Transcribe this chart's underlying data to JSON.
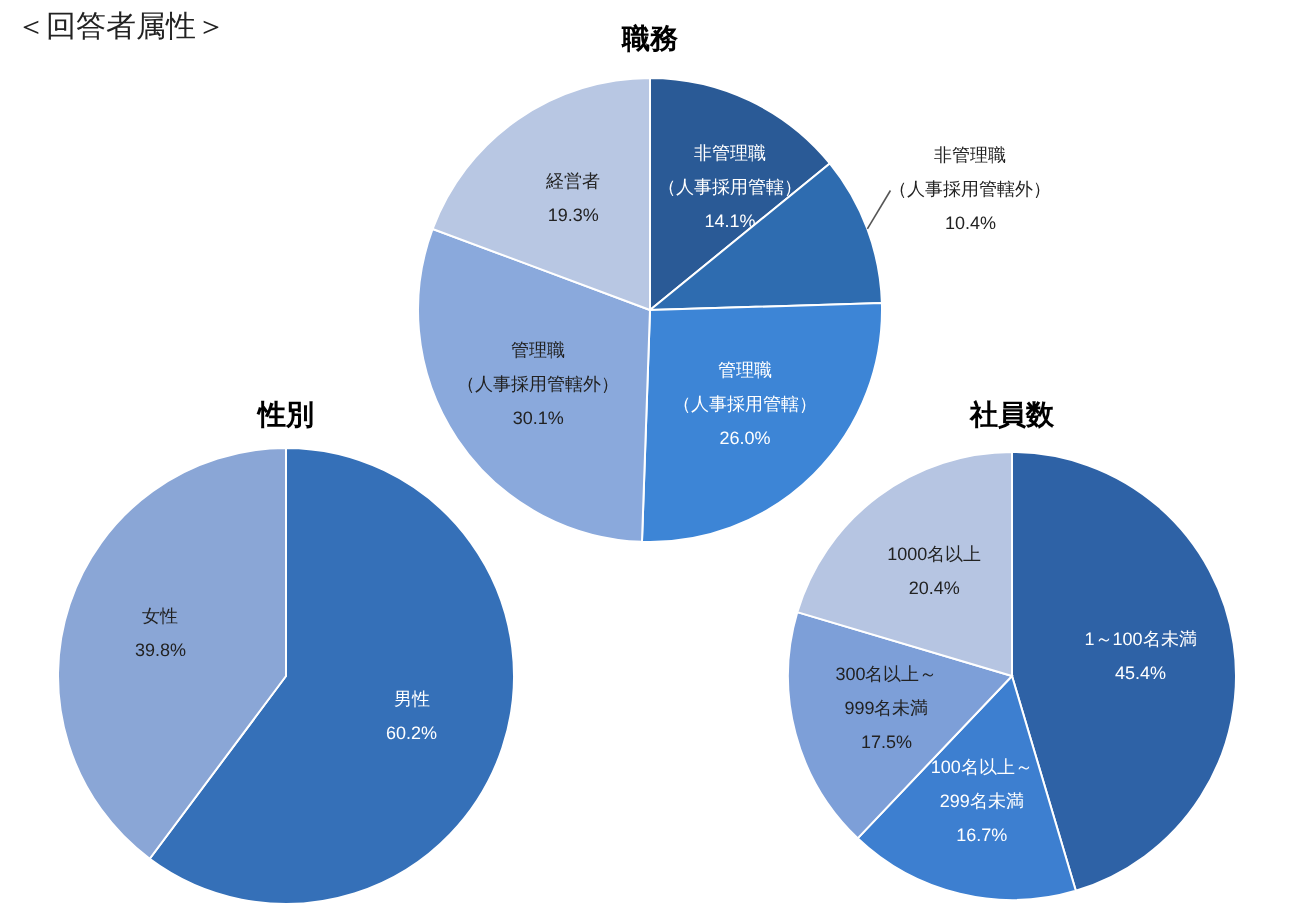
{
  "chart_data": [
    {
      "type": "pie",
      "title": "職務",
      "annotations": [
        "＜回答者属性＞"
      ],
      "categories": [
        "非管理職（人事採用管轄）",
        "非管理職（人事採用管轄外）",
        "管理職（人事採用管轄）",
        "管理職（人事採用管轄外）",
        "経営者"
      ],
      "values": [
        14.1,
        10.4,
        26.0,
        30.1,
        19.3
      ],
      "value_labels": [
        "14.1%",
        "10.4%",
        "26.0%",
        "30.1%",
        "19.3%"
      ],
      "colors": [
        "#2a5a96",
        "#2e6cb0",
        "#3d85d6",
        "#8aa9dc",
        "#b8c7e3"
      ]
    },
    {
      "type": "pie",
      "title": "性別",
      "categories": [
        "男性",
        "女性"
      ],
      "values": [
        60.2,
        39.8
      ],
      "value_labels": [
        "60.2%",
        "39.8%"
      ],
      "colors": [
        "#3570b8",
        "#8aa6d6"
      ]
    },
    {
      "type": "pie",
      "title": "社員数",
      "categories": [
        "1～100名未満",
        "100名以上～299名未満",
        "300名以上～999名未満",
        "1000名以上"
      ],
      "values": [
        45.4,
        16.7,
        17.5,
        20.4
      ],
      "value_labels": [
        "45.4%",
        "16.7%",
        "17.5%",
        "20.4%"
      ],
      "colors": [
        "#2e62a6",
        "#3d7fd0",
        "#7d9fd8",
        "#b6c5e2"
      ]
    }
  ]
}
